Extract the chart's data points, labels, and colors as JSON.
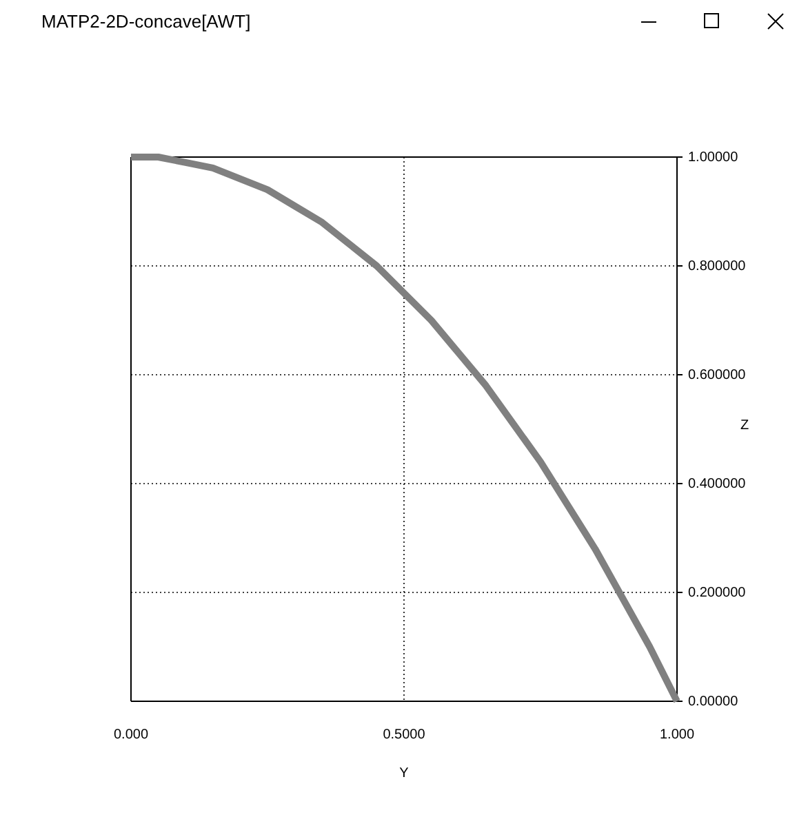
{
  "chart_data": {
    "type": "line",
    "title": "MATP2-2D-concave[AWT]",
    "xlabel": "Y",
    "ylabel": "Z",
    "x": [
      0,
      0.05,
      0.1,
      0.15,
      0.2,
      0.25,
      0.3,
      0.35,
      0.4,
      0.45,
      0.5,
      0.55,
      0.6,
      0.65,
      0.7,
      0.75,
      0.8,
      0.85,
      0.9,
      0.95,
      1
    ],
    "series": [
      {
        "color": "#808080",
        "values": [
          1,
          1,
          0.99,
          0.98,
          0.96,
          0.94,
          0.91,
          0.88,
          0.84,
          0.8,
          0.75,
          0.7,
          0.64,
          0.58,
          0.51,
          0.44,
          0.36,
          0.28,
          0.19,
          0.1,
          0
        ]
      }
    ],
    "xlim": [
      0,
      1
    ],
    "ylim": [
      0,
      1
    ],
    "xticks": [
      {
        "value": 0,
        "label": "0.000"
      },
      {
        "value": 0.5,
        "label": "0.5000"
      },
      {
        "value": 1,
        "label": "1.000"
      }
    ],
    "yticks": [
      {
        "value": 0,
        "label": "0.00000"
      },
      {
        "value": 0.2,
        "label": "0.200000"
      },
      {
        "value": 0.4,
        "label": "0.400000"
      },
      {
        "value": 0.6,
        "label": "0.600000"
      },
      {
        "value": 0.8,
        "label": "0.800000"
      },
      {
        "value": 1,
        "label": "1.00000"
      }
    ],
    "grid": true,
    "marker": "none",
    "line_style": "solid"
  }
}
